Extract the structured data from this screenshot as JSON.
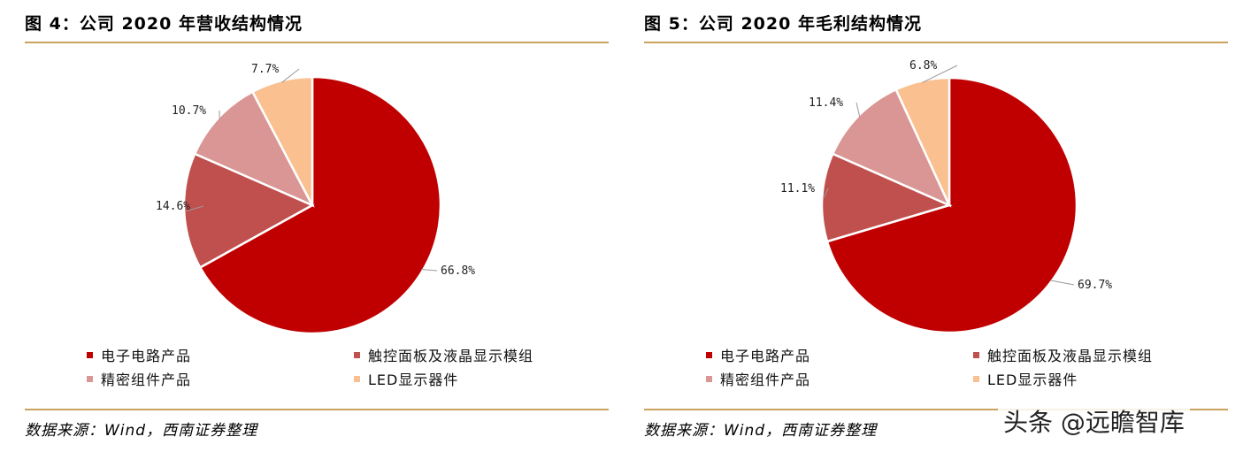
{
  "figures": [
    {
      "title": "图 4：公司 2020 年营收结构情况",
      "source": "数据来源：Wind，西南证券整理"
    },
    {
      "title": "图 5：公司 2020 年毛利结构情况",
      "source": "数据来源：Wind，西南证券整理"
    }
  ],
  "colors": {
    "rule": "#c9a35f",
    "series": [
      "#c00000",
      "#c0504d",
      "#d99694",
      "#fac090"
    ]
  },
  "watermark": "头条 @远瞻智库",
  "chart_data": [
    {
      "type": "pie",
      "title": "图 4：公司 2020 年营收结构情况",
      "categories": [
        "电子电路产品",
        "触控面板及液晶显示模组",
        "精密组件产品",
        "LED显示器件"
      ],
      "values": [
        66.8,
        14.6,
        10.7,
        7.7
      ],
      "labels": [
        "66.8%",
        "14.6%",
        "10.7%",
        "7.7%"
      ],
      "legend": "bottom"
    },
    {
      "type": "pie",
      "title": "图 5：公司 2020 年毛利结构情况",
      "categories": [
        "电子电路产品",
        "触控面板及液晶显示模组",
        "精密组件产品",
        "LED显示器件"
      ],
      "values": [
        69.7,
        11.1,
        11.4,
        6.8
      ],
      "labels": [
        "69.7%",
        "11.1%",
        "11.4%",
        "6.8%"
      ],
      "legend": "bottom"
    }
  ]
}
